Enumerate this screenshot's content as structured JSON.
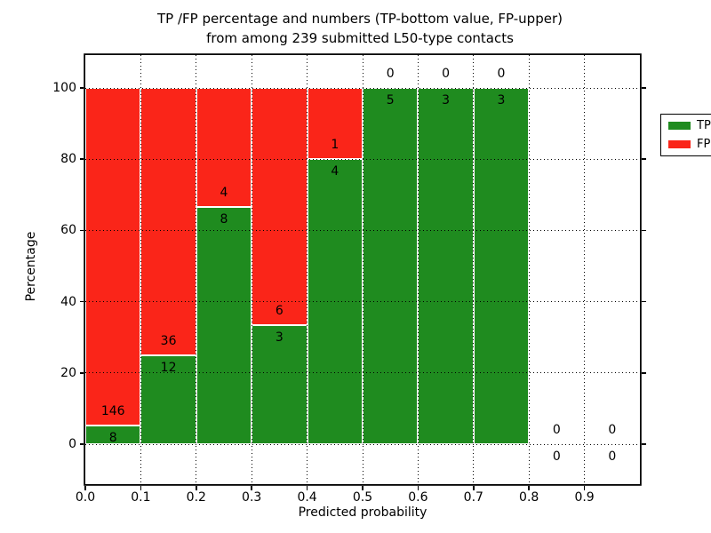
{
  "title": {
    "line1": "TP /FP percentage and numbers (TP-bottom value, FP-upper)",
    "line2": "from among 239 submitted L50-type contacts"
  },
  "chart_data": {
    "type": "bar",
    "stacked": true,
    "title": "TP /FP percentage and numbers (TP-bottom value, FP-upper) from among 239 submitted L50-type contacts",
    "xlabel": "Predicted probability",
    "ylabel": "Percentage",
    "xlim": [
      0.0,
      1.0
    ],
    "ylim": [
      -11,
      109
    ],
    "grid": "dotted",
    "legend_position": "upper right",
    "x_tick_labels": [
      "0.0",
      "0.1",
      "0.2",
      "0.3",
      "0.4",
      "0.5",
      "0.6",
      "0.7",
      "0.8",
      "0.9"
    ],
    "y_ticks": [
      0,
      20,
      40,
      60,
      80,
      100
    ],
    "bin_width": 0.1,
    "series": [
      {
        "name": "TP",
        "color": "#1f8b1f"
      },
      {
        "name": "FP",
        "color": "#fa2519"
      }
    ],
    "bins": [
      {
        "x0": 0.0,
        "x1": 0.1,
        "tp": 8,
        "fp": 146,
        "tp_pct": 5.19,
        "fp_pct": 94.81
      },
      {
        "x0": 0.1,
        "x1": 0.2,
        "tp": 12,
        "fp": 36,
        "tp_pct": 25,
        "fp_pct": 75
      },
      {
        "x0": 0.2,
        "x1": 0.3,
        "tp": 8,
        "fp": 4,
        "tp_pct": 66.67,
        "fp_pct": 33.33
      },
      {
        "x0": 0.3,
        "x1": 0.4,
        "tp": 3,
        "fp": 6,
        "tp_pct": 33.33,
        "fp_pct": 66.67
      },
      {
        "x0": 0.4,
        "x1": 0.5,
        "tp": 4,
        "fp": 1,
        "tp_pct": 80,
        "fp_pct": 20
      },
      {
        "x0": 0.5,
        "x1": 0.6,
        "tp": 5,
        "fp": 0,
        "tp_pct": 100,
        "fp_pct": 0
      },
      {
        "x0": 0.6,
        "x1": 0.7,
        "tp": 3,
        "fp": 0,
        "tp_pct": 100,
        "fp_pct": 0
      },
      {
        "x0": 0.7,
        "x1": 0.8,
        "tp": 3,
        "fp": 0,
        "tp_pct": 100,
        "fp_pct": 0
      },
      {
        "x0": 0.8,
        "x1": 0.9,
        "tp": 0,
        "fp": 0,
        "tp_pct": null,
        "fp_pct": null
      },
      {
        "x0": 0.9,
        "x1": 1.0,
        "tp": 0,
        "fp": 0,
        "tp_pct": null,
        "fp_pct": null
      }
    ]
  },
  "legend": {
    "items": [
      {
        "label": "TP",
        "color": "#1f8b1f"
      },
      {
        "label": "FP",
        "color": "#fa2519"
      }
    ]
  }
}
